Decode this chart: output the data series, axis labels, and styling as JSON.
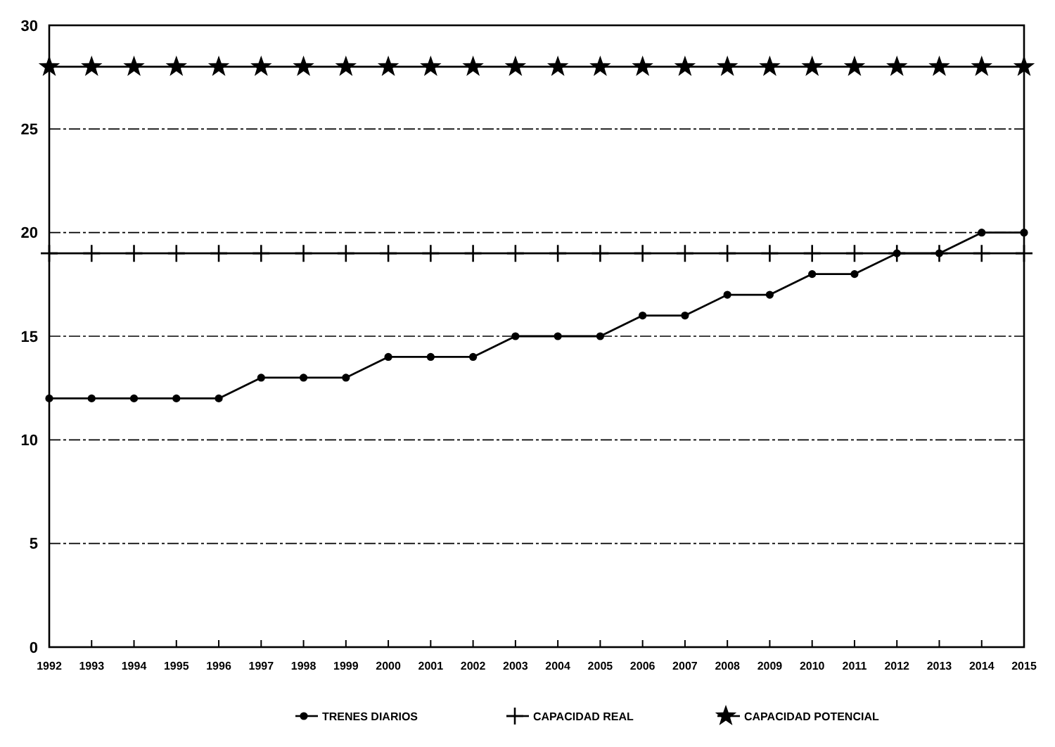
{
  "chart_data": {
    "type": "line",
    "categories": [
      "1992",
      "1993",
      "1994",
      "1995",
      "1996",
      "1997",
      "1998",
      "1999",
      "2000",
      "2001",
      "2002",
      "2003",
      "2004",
      "2005",
      "2006",
      "2007",
      "2008",
      "2009",
      "2010",
      "2011",
      "2012",
      "2013",
      "2014",
      "2015"
    ],
    "series": [
      {
        "name": "TRENES DIARIOS",
        "color": "#000000",
        "marker": "circle",
        "values": [
          12,
          12,
          12,
          12,
          12,
          13,
          13,
          13,
          14,
          14,
          14,
          15,
          15,
          15,
          16,
          16,
          17,
          17,
          18,
          18,
          19,
          19,
          20,
          20
        ]
      },
      {
        "name": "CAPACIDAD REAL",
        "color": "#000000",
        "marker": "cross",
        "values": [
          19,
          19,
          19,
          19,
          19,
          19,
          19,
          19,
          19,
          19,
          19,
          19,
          19,
          19,
          19,
          19,
          19,
          19,
          19,
          19,
          19,
          19,
          19,
          19
        ]
      },
      {
        "name": "CAPACIDAD POTENCIAL",
        "color": "#000000",
        "marker": "star",
        "values": [
          28,
          28,
          28,
          28,
          28,
          28,
          28,
          28,
          28,
          28,
          28,
          28,
          28,
          28,
          28,
          28,
          28,
          28,
          28,
          28,
          28,
          28,
          28,
          28
        ]
      }
    ],
    "ylim": [
      0,
      30
    ],
    "yticks": [
      0,
      5,
      10,
      15,
      20,
      25,
      30
    ],
    "grid": "y",
    "legend": "bottom",
    "line_style": "solid"
  }
}
